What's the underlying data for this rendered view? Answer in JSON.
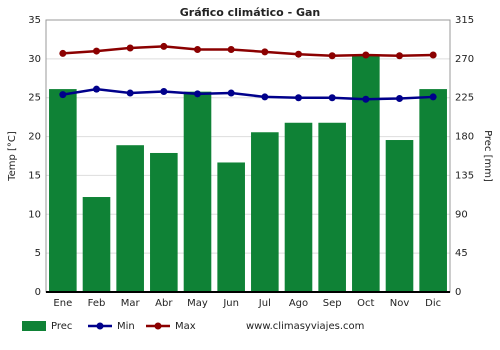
{
  "chart_data": {
    "type": "bar",
    "title": "Gráfico climático - Gan",
    "categories": [
      "Ene",
      "Feb",
      "Mar",
      "Abr",
      "May",
      "Jun",
      "Jul",
      "Ago",
      "Sep",
      "Oct",
      "Nov",
      "Dic"
    ],
    "y_label": "Temp [°C]",
    "y2_label": "Prec [mm]",
    "ylim": [
      0,
      35
    ],
    "yticks": [
      0,
      5,
      10,
      15,
      20,
      25,
      30,
      35
    ],
    "y2lim": [
      0,
      315
    ],
    "y2ticks": [
      0,
      45,
      90,
      135,
      180,
      225,
      270,
      315
    ],
    "grid": true,
    "series": [
      {
        "name": "Prec",
        "type": "bar",
        "axis": "y2",
        "color": "#0f8236",
        "values": [
          235,
          110,
          170,
          161,
          232,
          150,
          185,
          196,
          196,
          274,
          176,
          235
        ]
      },
      {
        "name": "Min",
        "type": "line",
        "color": "#00008b",
        "values": [
          25.4,
          26.1,
          25.6,
          25.8,
          25.5,
          25.6,
          25.1,
          25.0,
          25.0,
          24.8,
          24.9,
          25.1
        ]
      },
      {
        "name": "Max",
        "type": "line",
        "color": "#8b0000",
        "values": [
          30.7,
          31.0,
          31.4,
          31.6,
          31.2,
          31.2,
          30.9,
          30.6,
          30.4,
          30.5,
          30.4,
          30.5
        ]
      }
    ],
    "watermark": "www.climasyviajes.com"
  }
}
